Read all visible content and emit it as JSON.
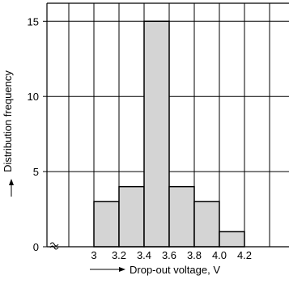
{
  "chart_data": {
    "type": "bar",
    "title": "",
    "xlabel": "Drop-out voltage, V",
    "ylabel": "Distribution frequency",
    "x_ticks": [
      "3",
      "3.2",
      "3.4",
      "3.6",
      "3.8",
      "4.0",
      "4.2"
    ],
    "y_ticks": [
      "0",
      "5",
      "10",
      "15"
    ],
    "ylim": [
      0,
      16.2
    ],
    "bins": [
      {
        "start": 3.0,
        "end": 3.2,
        "value": 3
      },
      {
        "start": 3.2,
        "end": 3.4,
        "value": 4
      },
      {
        "start": 3.4,
        "end": 3.6,
        "value": 15
      },
      {
        "start": 3.6,
        "end": 3.8,
        "value": 4
      },
      {
        "start": 3.8,
        "end": 4.0,
        "value": 3
      },
      {
        "start": 4.0,
        "end": 4.2,
        "value": 1
      }
    ],
    "grid": true,
    "axis_break": true,
    "bar_color": "#d4d4d4",
    "edge_color": "#000000"
  }
}
